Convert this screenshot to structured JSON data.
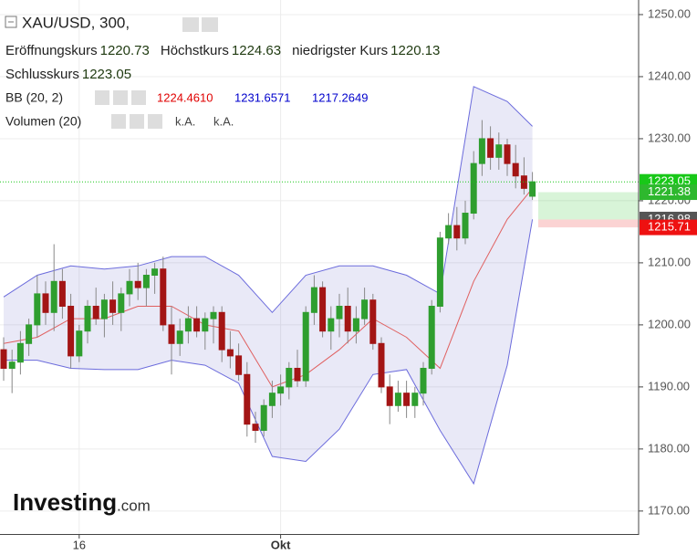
{
  "chart_data": {
    "type": "candlestick",
    "title": "XAU/USD, 300,",
    "ohlc_legend": [
      {
        "label": "Eröffnungskurs",
        "value": 1220.73
      },
      {
        "label": "Höchstkurs",
        "value": 1224.63
      },
      {
        "label": "niedrigster Kurs",
        "value": 1220.13
      },
      {
        "label": "Schlusskurs",
        "value": 1223.05
      }
    ],
    "indicators": [
      {
        "name": "BB (20, 2)",
        "values": [
          1224.461,
          1231.6571,
          1217.2649
        ],
        "value_labels": [
          "1224.4610",
          "1231.6571",
          "1217.2649"
        ],
        "colors": [
          "#e00000",
          "#0000cc",
          "#0000cc"
        ]
      },
      {
        "name": "Volumen (20)",
        "labels": [
          "k.A.",
          "k.A."
        ]
      }
    ],
    "categories": [
      null,
      null,
      null,
      null,
      null,
      null,
      null,
      null,
      null,
      "16",
      null,
      null,
      null,
      null,
      null,
      null,
      null,
      null,
      null,
      null,
      null,
      null,
      null,
      null,
      null,
      null,
      null,
      null,
      null,
      null,
      null,
      null,
      null,
      "Okt",
      null,
      null,
      null,
      null,
      null,
      null,
      null,
      null,
      null,
      null,
      null,
      null,
      null,
      null,
      null,
      null,
      null,
      null,
      null,
      null,
      null,
      null,
      null,
      null,
      null,
      null,
      null,
      null,
      null,
      null
    ],
    "open": [
      1196,
      1193,
      1194,
      1197,
      1200,
      1205,
      1202,
      1207,
      1203,
      1195,
      1199,
      1203,
      1201,
      1204,
      1202,
      1205,
      1207,
      1206,
      1208,
      1209,
      1200,
      1197,
      1199,
      1201,
      1199,
      1201,
      1202,
      1196,
      1195,
      1192,
      1184,
      1183,
      1187,
      1189,
      1190,
      1193,
      1191,
      1202,
      1206,
      1199,
      1201,
      1203,
      1199,
      1201,
      1204,
      1197,
      1190,
      1187,
      1189,
      1187,
      1189,
      1193,
      1203,
      1214,
      1216,
      1214,
      1218,
      1226,
      1230,
      1227,
      1229,
      1226,
      1224,
      1220.73
    ],
    "high": [
      1198,
      1196,
      1199,
      1201,
      1208,
      1207,
      1213,
      1209,
      1205,
      1200,
      1204,
      1206,
      1205,
      1207,
      1206,
      1209,
      1210,
      1209,
      1210,
      1211,
      1203,
      1201,
      1203,
      1203,
      1202,
      1203,
      1203,
      1199,
      1197,
      1194,
      1186,
      1188,
      1191,
      1192,
      1194,
      1196,
      1203,
      1208,
      1207,
      1203,
      1205,
      1206,
      1203,
      1206,
      1205,
      1198,
      1192,
      1191,
      1191,
      1190,
      1194,
      1204,
      1215,
      1218,
      1219,
      1220,
      1228,
      1233,
      1232,
      1231,
      1230,
      1229,
      1227,
      1224.63
    ],
    "low": [
      1191,
      1189,
      1192,
      1195,
      1198,
      1200,
      1199,
      1201,
      1193,
      1194,
      1197,
      1200,
      1198,
      1200,
      1199,
      1203,
      1204,
      1203,
      1205,
      1199,
      1192,
      1195,
      1197,
      1198,
      1196,
      1197,
      1194,
      1193,
      1191,
      1182,
      1181,
      1182,
      1185,
      1187,
      1188,
      1190,
      1190,
      1200,
      1198,
      1196,
      1198,
      1197,
      1197,
      1200,
      1196,
      1189,
      1184,
      1186,
      1185,
      1185,
      1187,
      1192,
      1202,
      1213,
      1212,
      1213,
      1217,
      1224,
      1225,
      1225,
      1224,
      1222,
      1221,
      1220.13
    ],
    "close": [
      1193,
      1194,
      1197,
      1200,
      1205,
      1202,
      1207,
      1203,
      1195,
      1199,
      1203,
      1201,
      1204,
      1202,
      1205,
      1207,
      1206,
      1208,
      1209,
      1200,
      1197,
      1199,
      1201,
      1199,
      1201,
      1202,
      1196,
      1195,
      1192,
      1184,
      1183,
      1187,
      1189,
      1190,
      1193,
      1191,
      1202,
      1206,
      1199,
      1201,
      1203,
      1199,
      1201,
      1204,
      1197,
      1190,
      1187,
      1189,
      1187,
      1189,
      1193,
      1203,
      1214,
      1216,
      1214,
      1218,
      1226,
      1230,
      1227,
      1229,
      1226,
      1224,
      1222,
      1223.05
    ],
    "up_color": "#2f9e2f",
    "down_color": "#a31515",
    "bb_x": [
      0,
      4,
      8,
      12,
      16,
      20,
      24,
      28,
      32,
      36,
      40,
      44,
      48,
      52,
      56,
      60,
      63
    ],
    "bb_upper": [
      1204.5,
      1208,
      1209.5,
      1209,
      1209.5,
      1211,
      1211,
      1208,
      1202,
      1208,
      1209.5,
      1209.5,
      1208,
      1205,
      1238.4,
      1236,
      1232
    ],
    "bb_middle": [
      1197,
      1198,
      1201,
      1201,
      1203,
      1203,
      1200,
      1199,
      1190,
      1192,
      1196,
      1201,
      1198,
      1193,
      1207,
      1217,
      1222
    ],
    "bb_lower": [
      1194.3,
      1194.3,
      1193,
      1192.8,
      1192.8,
      1194.3,
      1193.5,
      1190.6,
      1178.8,
      1178,
      1183.2,
      1192,
      1192.8,
      1183,
      1174.4,
      1193.5,
      1217
    ],
    "bb_band_color": "#6b6bdc",
    "bb_mid_color": "#e06060",
    "bb_fill": "rgba(110,110,200,0.15)",
    "ylim": [
      1166.3,
      1252.35
    ],
    "yticks": [
      {
        "value": 1170,
        "label": "1170.00"
      },
      {
        "value": 1180,
        "label": "1180.00"
      },
      {
        "value": 1190,
        "label": "1190.00"
      },
      {
        "value": 1200,
        "label": "1200.00"
      },
      {
        "value": 1210,
        "label": "1210.00"
      },
      {
        "value": 1220,
        "label": "1220.00"
      },
      {
        "value": 1230,
        "label": "1230.00"
      },
      {
        "value": 1240,
        "label": "1240.00"
      },
      {
        "value": 1250,
        "label": "1250.00"
      }
    ],
    "grid": true,
    "price_labels": [
      {
        "value": 1223.05,
        "color": "#18c818"
      },
      {
        "value": 1221.38,
        "color": "#2eb82e"
      },
      {
        "value": 1216.98,
        "color": "#555555"
      },
      {
        "value": 1215.71,
        "color": "#ee1111"
      }
    ],
    "watermark": [
      "Investing",
      ".com"
    ]
  }
}
